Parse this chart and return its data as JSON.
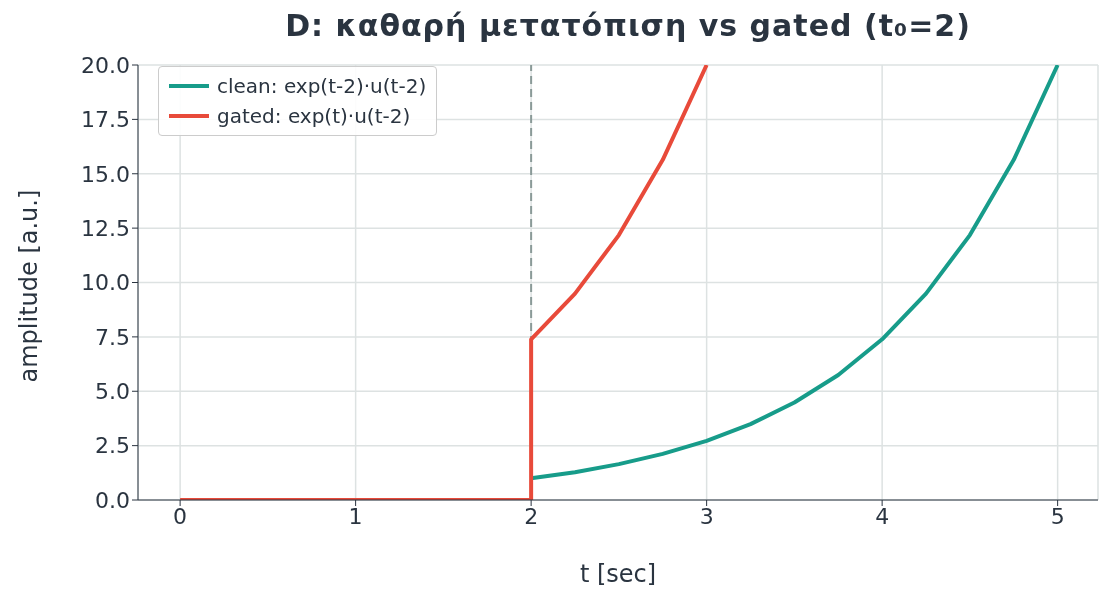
{
  "chart_data": {
    "type": "line",
    "title": "D: καθαρή μετατόπιση vs gated (t₀=2)",
    "xlabel": "t [sec]",
    "ylabel": "amplitude [a.u.]",
    "series": [
      {
        "name": "clean: exp(t-2)·u(t-2)",
        "color": "#179c8a",
        "x": [
          2,
          2.25,
          2.5,
          2.75,
          3,
          3.25,
          3.5,
          3.75,
          4,
          4.25,
          4.5,
          4.75,
          5
        ],
        "values": [
          1,
          1.28,
          1.65,
          2.12,
          2.72,
          3.49,
          4.48,
          5.75,
          7.39,
          9.49,
          12.18,
          15.64,
          20
        ]
      },
      {
        "name": "gated: exp(t)·u(t-2)",
        "color": "#e84a3a",
        "x": [
          0,
          1,
          2,
          2,
          2.25,
          2.5,
          2.75,
          3
        ],
        "values": [
          0,
          0,
          0,
          7.39,
          9.49,
          12.18,
          15.64,
          20
        ]
      }
    ],
    "xlim": [
      -0.24,
      5.23
    ],
    "xticks": [
      0,
      1,
      2,
      3,
      4,
      5
    ],
    "ylim": [
      0,
      20
    ],
    "yticks": [
      {
        "value": 0,
        "label": "0.0"
      },
      {
        "value": 2.5,
        "label": "2.5"
      },
      {
        "value": 5,
        "label": "5.0"
      },
      {
        "value": 7.5,
        "label": "7.5"
      },
      {
        "value": 10,
        "label": "10.0"
      },
      {
        "value": 12.5,
        "label": "12.5"
      },
      {
        "value": 15,
        "label": "15.0"
      },
      {
        "value": 17.5,
        "label": "17.5"
      },
      {
        "value": 20,
        "label": "20.0"
      }
    ],
    "ref_lines": [
      {
        "axis": "x",
        "value": 2,
        "color": "#8a9a98",
        "line_style": "dashed"
      }
    ],
    "grid": true,
    "legend": "top left",
    "marker": "none",
    "line_style": "solid"
  }
}
